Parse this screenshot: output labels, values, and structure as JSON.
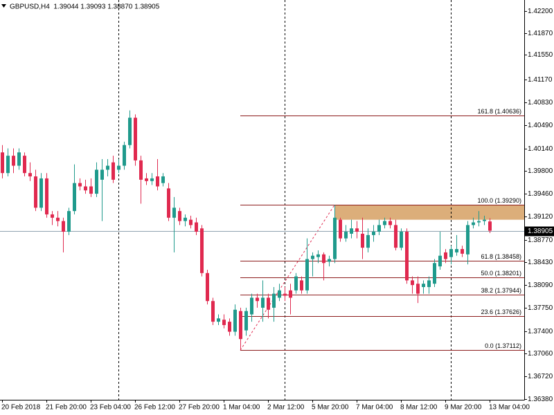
{
  "chart_data": {
    "type": "candlestick",
    "title": "GBPUSD,H4  1.39044 1.39093 1.38870 1.38905",
    "categories": [
      "20 Feb 2018",
      null,
      null,
      null,
      null,
      null,
      null,
      null,
      "21 Feb 20:00",
      null,
      null,
      null,
      null,
      null,
      null,
      null,
      "23 Feb 04:00",
      null,
      null,
      null,
      null,
      null,
      null,
      null,
      "26 Feb 12:00",
      null,
      null,
      null,
      null,
      null,
      null,
      null,
      "27 Feb 20:00",
      null,
      null,
      null,
      null,
      null,
      null,
      null,
      "1 Mar 04:00",
      null,
      null,
      null,
      null,
      null,
      null,
      null,
      "2 Mar 12:00",
      null,
      null,
      null,
      null,
      null,
      null,
      null,
      "5 Mar 20:00",
      null,
      null,
      null,
      null,
      null,
      null,
      null,
      "7 Mar 04:00",
      null,
      null,
      null,
      null,
      null,
      null,
      null,
      "8 Mar 12:00",
      null,
      null,
      null,
      null,
      null,
      null,
      null,
      "9 Mar 20:00",
      null,
      null,
      null,
      null,
      null,
      null,
      null,
      "13 Mar 04:00"
    ],
    "open": [
      1.4008,
      1.3977,
      1.4003,
      1.3988,
      1.4003,
      1.3977,
      1.3972,
      1.3925,
      1.3969,
      1.3915,
      1.391,
      1.3905,
      1.3889,
      1.392,
      1.3962,
      1.3957,
      1.3957,
      1.3946,
      1.3967,
      1.3982,
      1.3993,
      1.3982,
      1.3988,
      1.4019,
      1.406,
      1.3996,
      1.3969,
      1.3965,
      1.3972,
      1.3962,
      1.3954,
      1.391,
      1.392,
      1.3905,
      1.3907,
      1.3903,
      1.3894,
      1.3827,
      1.3785,
      1.3754,
      1.3757,
      1.3754,
      1.3739,
      1.377,
      1.3741,
      1.3765,
      1.379,
      1.3775,
      1.379,
      1.3775,
      1.379,
      1.3796,
      1.3801,
      1.3801,
      1.3816,
      1.3801,
      1.3848,
      1.3851,
      1.3855,
      1.3844,
      1.3848,
      1.3907,
      1.3879,
      1.3886,
      1.3894,
      1.3886,
      1.3865,
      1.3884,
      1.3889,
      1.3899,
      1.3905,
      1.3899,
      1.3865,
      1.3889,
      1.3816,
      1.3811,
      1.3806,
      1.3806,
      1.3811,
      1.3837,
      1.3858,
      1.3851,
      1.3858,
      1.3863,
      1.3855,
      1.3899,
      1.3903,
      1.3905,
      1.39044
    ],
    "high": [
      1.4019,
      1.4014,
      1.4014,
      1.4014,
      1.4008,
      1.3993,
      1.3982,
      1.3977,
      1.3977,
      1.392,
      1.392,
      1.391,
      1.3925,
      1.399,
      1.3969,
      1.3967,
      1.3969,
      1.3993,
      1.3998,
      1.3998,
      1.4003,
      1.3998,
      1.4024,
      1.4071,
      1.4065,
      1.4003,
      1.3977,
      1.3977,
      1.3998,
      1.3977,
      1.3962,
      1.3941,
      1.3925,
      1.3915,
      1.3913,
      1.391,
      1.3899,
      1.3832,
      1.379,
      1.3765,
      1.3765,
      1.3759,
      1.378,
      1.3775,
      1.3775,
      1.3796,
      1.3796,
      1.3816,
      1.3796,
      1.3806,
      1.3811,
      1.3806,
      1.3811,
      1.3827,
      1.3822,
      1.3879,
      1.3858,
      1.3861,
      1.3858,
      1.3853,
      1.3929,
      1.391,
      1.3899,
      1.3907,
      1.3905,
      1.391,
      1.3894,
      1.3899,
      1.3907,
      1.391,
      1.391,
      1.3907,
      1.3894,
      1.3894,
      1.3822,
      1.3822,
      1.3816,
      1.3822,
      1.3848,
      1.3889,
      1.3863,
      1.3868,
      1.3884,
      1.3868,
      1.3905,
      1.391,
      1.392,
      1.3913,
      1.39093
    ],
    "low": [
      1.3969,
      1.3972,
      1.3977,
      1.3982,
      1.3972,
      1.3965,
      1.392,
      1.392,
      1.391,
      1.3899,
      1.3897,
      1.3858,
      1.3884,
      1.3915,
      1.3951,
      1.3946,
      1.3941,
      1.3941,
      1.3905,
      1.3972,
      1.3962,
      1.3977,
      1.3982,
      1.4014,
      1.3988,
      1.3931,
      1.3959,
      1.3959,
      1.3951,
      1.3957,
      1.3905,
      1.3858,
      1.3899,
      1.3897,
      1.3894,
      1.3884,
      1.3822,
      1.378,
      1.3749,
      1.3749,
      1.3744,
      1.3733,
      1.3733,
      1.37112,
      1.3733,
      1.3754,
      1.3775,
      1.3754,
      1.3759,
      1.3754,
      1.3785,
      1.3785,
      1.3765,
      1.3796,
      1.3796,
      1.3796,
      1.3822,
      1.3842,
      1.3816,
      1.3837,
      1.3842,
      1.3874,
      1.3874,
      1.3879,
      1.3879,
      1.3848,
      1.3858,
      1.3874,
      1.3884,
      1.3894,
      1.3894,
      1.3861,
      1.3861,
      1.3811,
      1.3796,
      1.3782,
      1.3796,
      1.3796,
      1.3806,
      1.3832,
      1.3842,
      1.384,
      1.3853,
      1.3851,
      1.384,
      1.3894,
      1.3897,
      1.3899,
      1.3887
    ],
    "close": [
      1.3977,
      1.4003,
      1.3988,
      1.4008,
      1.3977,
      1.3972,
      1.3925,
      1.3969,
      1.3915,
      1.391,
      1.3905,
      1.3889,
      1.392,
      1.3962,
      1.3957,
      1.3951,
      1.3946,
      1.3982,
      1.3982,
      1.3988,
      1.3967,
      1.3988,
      1.4019,
      1.406,
      1.3996,
      1.3967,
      1.3965,
      1.3969,
      1.3957,
      1.3972,
      1.391,
      1.3925,
      1.3905,
      1.391,
      1.3899,
      1.3889,
      1.3827,
      1.3785,
      1.3754,
      1.3759,
      1.3749,
      1.3739,
      1.3772,
      1.3728,
      1.377,
      1.379,
      1.3785,
      1.379,
      1.3772,
      1.3796,
      1.3801,
      1.3793,
      1.379,
      1.3822,
      1.3801,
      1.3848,
      1.3853,
      1.3855,
      1.3842,
      1.3848,
      1.391,
      1.3879,
      1.3889,
      1.3894,
      1.3889,
      1.3865,
      1.3884,
      1.3889,
      1.3899,
      1.3905,
      1.3899,
      1.3865,
      1.3889,
      1.3816,
      1.3809,
      1.3796,
      1.3811,
      1.3816,
      1.3842,
      1.3853,
      1.3848,
      1.3863,
      1.3863,
      1.3856,
      1.3899,
      1.3903,
      1.3905,
      1.3907,
      1.38905
    ],
    "up_color": "#1f9a8c",
    "down_color": "#e0294f",
    "ylim": [
      1.36369,
      1.42366
    ],
    "yticks": [
      {
        "value": 1.422,
        "label": "1.42200"
      },
      {
        "value": 1.4187,
        "label": "1.41870"
      },
      {
        "value": 1.4155,
        "label": "1.41550"
      },
      {
        "value": 1.4117,
        "label": "1.41170"
      },
      {
        "value": 1.4083,
        "label": "1.40830"
      },
      {
        "value": 1.4049,
        "label": "1.40490"
      },
      {
        "value": 1.4014,
        "label": "1.40140"
      },
      {
        "value": 1.398,
        "label": "1.39800"
      },
      {
        "value": 1.3946,
        "label": "1.39460"
      },
      {
        "value": 1.3912,
        "label": "1.39120"
      },
      {
        "value": 1.3877,
        "label": "1.38770"
      },
      {
        "value": 1.3843,
        "label": "1.38430"
      },
      {
        "value": 1.3809,
        "label": "1.38090"
      },
      {
        "value": 1.3775,
        "label": "1.37750"
      },
      {
        "value": 1.374,
        "label": "1.37400"
      },
      {
        "value": 1.3706,
        "label": "1.37060"
      },
      {
        "value": 1.3672,
        "label": "1.36720"
      },
      {
        "value": 1.3638,
        "label": "1.36380"
      }
    ],
    "current": {
      "value": 1.38905,
      "label": "1.38905"
    },
    "current_color": "#8fa3b0",
    "fib_color": "#8b1a1a",
    "fib_levels": [
      {
        "value": 1.40636,
        "label": "161.8 (1.40636)"
      },
      {
        "value": 1.3929,
        "label": "100.0 (1.39290)"
      },
      {
        "value": 1.38458,
        "label": "61.8 (1.38458)"
      },
      {
        "value": 1.38201,
        "label": "50.0 (1.38201)"
      },
      {
        "value": 1.37944,
        "label": "38.2 (1.37944)"
      },
      {
        "value": 1.37626,
        "label": "23.6 (1.37626)"
      },
      {
        "value": 1.37112,
        "label": "0.0 (1.37112)"
      }
    ],
    "zone": [
      1.3929,
      1.3907
    ],
    "zone_color": "#dcae7a"
  }
}
